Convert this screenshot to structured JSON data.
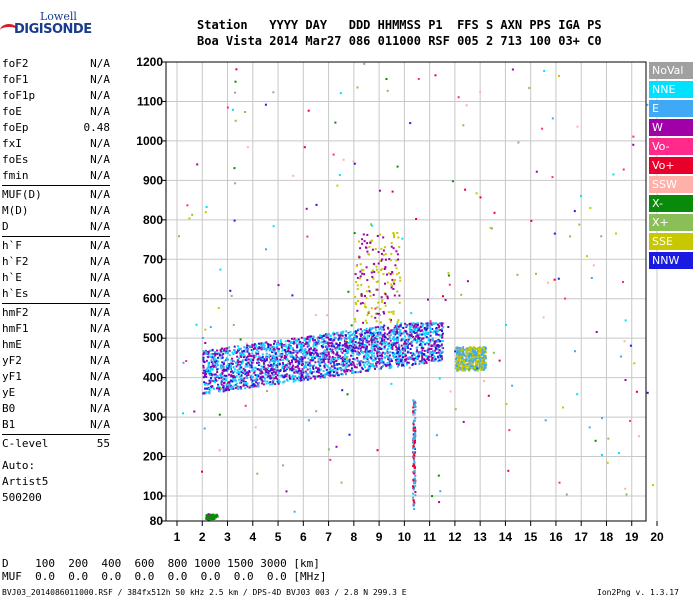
{
  "logo": {
    "line1": "Lowell",
    "line2": "DIGISONDE"
  },
  "header": {
    "row1": "Station   YYYY DAY   DDD HHMMSS P1  FFS S AXN PPS IGA PS",
    "row2": "Boa Vista 2014 Mar27 086 011000 RSF 005 2 713 100 03+ C0"
  },
  "params": [
    [
      {
        "k": "foF2",
        "v": "N/A"
      },
      {
        "k": "foF1",
        "v": "N/A"
      },
      {
        "k": "foF1p",
        "v": "N/A"
      },
      {
        "k": "foE",
        "v": "N/A"
      },
      {
        "k": "foEp",
        "v": "0.48"
      },
      {
        "k": "fxI",
        "v": "N/A"
      },
      {
        "k": "foEs",
        "v": "N/A"
      },
      {
        "k": "fmin",
        "v": "N/A"
      }
    ],
    [
      {
        "k": "MUF(D)",
        "v": "N/A"
      },
      {
        "k": "M(D)",
        "v": "N/A"
      },
      {
        "k": "D",
        "v": "N/A"
      }
    ],
    [
      {
        "k": "h`F",
        "v": "N/A"
      },
      {
        "k": "h`F2",
        "v": "N/A"
      },
      {
        "k": "h`E",
        "v": "N/A"
      },
      {
        "k": "h`Es",
        "v": "N/A"
      }
    ],
    [
      {
        "k": "hmF2",
        "v": "N/A"
      },
      {
        "k": "hmF1",
        "v": "N/A"
      },
      {
        "k": "hmE",
        "v": "N/A"
      },
      {
        "k": "yF2",
        "v": "N/A"
      },
      {
        "k": "yF1",
        "v": "N/A"
      },
      {
        "k": "yE",
        "v": "N/A"
      },
      {
        "k": "B0",
        "v": "N/A"
      },
      {
        "k": "B1",
        "v": "N/A"
      }
    ],
    [
      {
        "k": "C-level",
        "v": "55"
      }
    ]
  ],
  "auto": {
    "l1": "Auto:",
    "l2": "Artist5",
    "l3": "500200"
  },
  "legend": [
    {
      "label": "NoVal",
      "color": "#a0a0a0"
    },
    {
      "label": "NNE",
      "color": "#00e0ff"
    },
    {
      "label": "E",
      "color": "#3fa9f5"
    },
    {
      "label": "W",
      "color": "#a000a8"
    },
    {
      "label": "Vo-",
      "color": "#ff2a8a"
    },
    {
      "label": "Vo+",
      "color": "#e8002a"
    },
    {
      "label": "SSW",
      "color": "#ffb0a8"
    },
    {
      "label": "X-",
      "color": "#0a8a0a"
    },
    {
      "label": "X+",
      "color": "#8abf58"
    },
    {
      "label": "SSE",
      "color": "#c8c800"
    },
    {
      "label": "NNW",
      "color": "#1a1ae0"
    }
  ],
  "bottom": {
    "d_row": "D    100  200  400  600  800 1000 1500 3000 [km]",
    "muf_row": "MUF  0.0  0.0  0.0  0.0  0.0  0.0  0.0  0.0 [MHz]"
  },
  "footer": {
    "left": "BVJ03_2014086011000.RSF / 384fx512h 50 kHz 2.5 km / DPS-4D BVJ03 003 / 2.8 N 299.3 E",
    "right": "Ion2Png v. 1.3.17"
  },
  "chart_data": {
    "type": "scatter",
    "xlim": [
      1,
      20
    ],
    "ylim": [
      80,
      1200
    ],
    "xticks": [
      1,
      2,
      3,
      4,
      5,
      6,
      7,
      8,
      9,
      10,
      11,
      12,
      13,
      14,
      15,
      16,
      17,
      18,
      19,
      20
    ],
    "yticks": [
      80,
      100,
      200,
      300,
      400,
      500,
      600,
      700,
      800,
      900,
      1000,
      1100,
      1200
    ],
    "grid": true,
    "xlabel": "",
    "ylabel": ""
  }
}
